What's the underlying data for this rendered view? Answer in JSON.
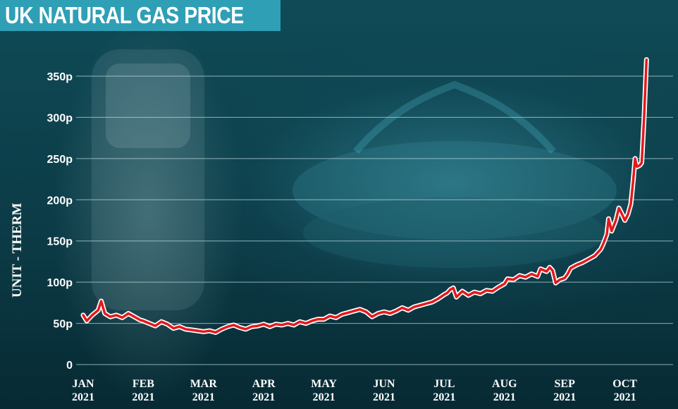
{
  "title": "UK NATURAL GAS PRICE",
  "colors": {
    "title_bg": "#2f9fb6",
    "line": "#e3191c",
    "gridline": "#b7d6dc"
  },
  "chart_data": {
    "type": "line",
    "title": "UK NATURAL GAS PRICE",
    "xlabel": "",
    "ylabel": "UNIT - THERM",
    "ylim": [
      0,
      370
    ],
    "yticks": [
      {
        "value": 0,
        "label": "0"
      },
      {
        "value": 50,
        "label": "50p"
      },
      {
        "value": 100,
        "label": "100p"
      },
      {
        "value": 150,
        "label": "150p"
      },
      {
        "value": 200,
        "label": "200p"
      },
      {
        "value": 250,
        "label": "250p"
      },
      {
        "value": 300,
        "label": "300p"
      },
      {
        "value": 350,
        "label": "350p"
      }
    ],
    "xticks": [
      {
        "month": 0,
        "line1": "JAN",
        "line2": "2021"
      },
      {
        "month": 1,
        "line1": "FEB",
        "line2": "2021"
      },
      {
        "month": 2,
        "line1": "MAR",
        "line2": "2021"
      },
      {
        "month": 3,
        "line1": "APR",
        "line2": "2021"
      },
      {
        "month": 4,
        "line1": "MAY",
        "line2": "2021"
      },
      {
        "month": 5,
        "line1": "JUN",
        "line2": "2021"
      },
      {
        "month": 6,
        "line1": "JUL",
        "line2": "2021"
      },
      {
        "month": 7,
        "line1": "AUG",
        "line2": "2021"
      },
      {
        "month": 8,
        "line1": "SEP",
        "line2": "2021"
      },
      {
        "month": 9,
        "line1": "OCT",
        "line2": "2021"
      }
    ],
    "grid": true,
    "series": [
      {
        "values": [
          [
            0.0,
            60
          ],
          [
            0.06,
            53
          ],
          [
            0.15,
            60
          ],
          [
            0.25,
            66
          ],
          [
            0.3,
            77
          ],
          [
            0.36,
            62
          ],
          [
            0.45,
            58
          ],
          [
            0.55,
            60
          ],
          [
            0.65,
            57
          ],
          [
            0.75,
            62
          ],
          [
            0.85,
            58
          ],
          [
            0.95,
            54
          ],
          [
            1.0,
            53
          ],
          [
            1.1,
            50
          ],
          [
            1.2,
            47
          ],
          [
            1.3,
            52
          ],
          [
            1.4,
            49
          ],
          [
            1.5,
            44
          ],
          [
            1.6,
            46
          ],
          [
            1.7,
            43
          ],
          [
            1.8,
            42
          ],
          [
            1.9,
            41
          ],
          [
            2.0,
            40
          ],
          [
            2.1,
            41
          ],
          [
            2.2,
            39
          ],
          [
            2.3,
            43
          ],
          [
            2.4,
            46
          ],
          [
            2.5,
            48
          ],
          [
            2.6,
            45
          ],
          [
            2.7,
            43
          ],
          [
            2.8,
            46
          ],
          [
            2.9,
            47
          ],
          [
            3.0,
            49
          ],
          [
            3.1,
            46
          ],
          [
            3.2,
            49
          ],
          [
            3.3,
            48
          ],
          [
            3.4,
            50
          ],
          [
            3.5,
            48
          ],
          [
            3.6,
            52
          ],
          [
            3.7,
            50
          ],
          [
            3.8,
            53
          ],
          [
            3.9,
            55
          ],
          [
            4.0,
            55
          ],
          [
            4.1,
            59
          ],
          [
            4.2,
            57
          ],
          [
            4.3,
            61
          ],
          [
            4.4,
            63
          ],
          [
            4.5,
            65
          ],
          [
            4.6,
            67
          ],
          [
            4.7,
            64
          ],
          [
            4.8,
            58
          ],
          [
            4.9,
            62
          ],
          [
            5.0,
            64
          ],
          [
            5.1,
            62
          ],
          [
            5.2,
            65
          ],
          [
            5.3,
            69
          ],
          [
            5.4,
            66
          ],
          [
            5.5,
            70
          ],
          [
            5.6,
            72
          ],
          [
            5.7,
            74
          ],
          [
            5.8,
            76
          ],
          [
            5.9,
            80
          ],
          [
            6.0,
            85
          ],
          [
            6.05,
            87
          ],
          [
            6.1,
            91
          ],
          [
            6.15,
            93
          ],
          [
            6.2,
            82
          ],
          [
            6.3,
            89
          ],
          [
            6.4,
            84
          ],
          [
            6.5,
            88
          ],
          [
            6.6,
            86
          ],
          [
            6.7,
            90
          ],
          [
            6.8,
            89
          ],
          [
            6.9,
            94
          ],
          [
            7.0,
            98
          ],
          [
            7.05,
            104
          ],
          [
            7.15,
            103
          ],
          [
            7.25,
            108
          ],
          [
            7.35,
            106
          ],
          [
            7.45,
            110
          ],
          [
            7.55,
            107
          ],
          [
            7.6,
            116
          ],
          [
            7.7,
            113
          ],
          [
            7.75,
            118
          ],
          [
            7.8,
            114
          ],
          [
            7.85,
            99
          ],
          [
            7.92,
            103
          ],
          [
            8.0,
            105
          ],
          [
            8.05,
            110
          ],
          [
            8.1,
            117
          ],
          [
            8.2,
            121
          ],
          [
            8.3,
            124
          ],
          [
            8.4,
            128
          ],
          [
            8.5,
            132
          ],
          [
            8.6,
            140
          ],
          [
            8.65,
            148
          ],
          [
            8.7,
            158
          ],
          [
            8.73,
            177
          ],
          [
            8.78,
            162
          ],
          [
            8.85,
            175
          ],
          [
            8.9,
            190
          ],
          [
            8.95,
            183
          ],
          [
            9.0,
            175
          ],
          [
            9.05,
            182
          ],
          [
            9.1,
            195
          ],
          [
            9.14,
            225
          ],
          [
            9.17,
            250
          ],
          [
            9.2,
            240
          ],
          [
            9.25,
            242
          ],
          [
            9.28,
            245
          ],
          [
            9.32,
            300
          ],
          [
            9.36,
            370
          ]
        ]
      }
    ]
  }
}
